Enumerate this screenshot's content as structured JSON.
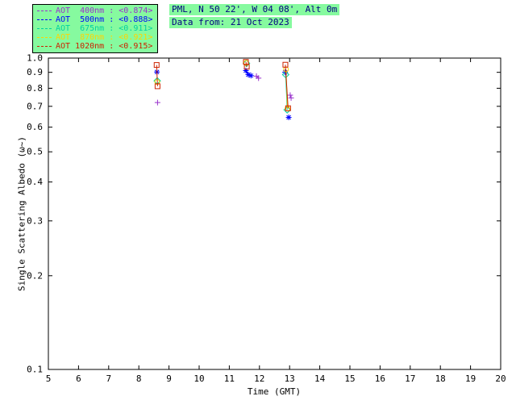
{
  "theme": {
    "legend_bg": "#86fa9f",
    "header_bg": "#86fa9f",
    "header_text_color": "#000080",
    "axis_color": "#000000"
  },
  "header": {
    "station_line": "PML, N 50 22', W 04 08', Alt 0m",
    "date_line": "Data from: 21 Oct 2023"
  },
  "chart_data": {
    "type": "scatter",
    "title": "",
    "xlabel": "Time (GMT)",
    "ylabel": "Single Scattering Albedo (ω~)",
    "xlim": [
      5,
      20
    ],
    "ylim": [
      0.1,
      1.0
    ],
    "yscale": "log",
    "grid": false,
    "legend_position": "top-left",
    "xticks": [
      5,
      6,
      7,
      8,
      9,
      10,
      11,
      12,
      13,
      14,
      15,
      16,
      17,
      18,
      19,
      20
    ],
    "yticks": [
      0.1,
      0.2,
      0.3,
      0.4,
      0.5,
      0.6,
      0.7,
      0.8,
      0.9,
      1.0
    ],
    "connect_gap_max": 0.1,
    "series": [
      {
        "name": "AOT 400nm",
        "legend_label": "AOT  400nm : <0.874>",
        "mean_label": "<0.874>",
        "color": "#9932cc",
        "marker": "plus",
        "points": [
          [
            8.62,
            0.72
          ],
          [
            11.9,
            0.875
          ],
          [
            11.97,
            0.862
          ],
          [
            13.02,
            0.76
          ],
          [
            13.05,
            0.745
          ]
        ]
      },
      {
        "name": "AOT 500nm",
        "legend_label": "AOT  500nm : <0.888>",
        "mean_label": "<0.888>",
        "color": "#0000ff",
        "marker": "asterisk",
        "points": [
          [
            8.6,
            0.902
          ],
          [
            11.55,
            0.912
          ],
          [
            11.63,
            0.885
          ],
          [
            11.72,
            0.878
          ],
          [
            12.85,
            0.9
          ],
          [
            12.97,
            0.645
          ]
        ]
      },
      {
        "name": "AOT 675nm",
        "legend_label": "AOT  675nm : <0.911>",
        "mean_label": "<0.911>",
        "color": "#00d2a0",
        "marker": "diamond",
        "points": [
          [
            8.61,
            0.845
          ],
          [
            11.57,
            0.962
          ],
          [
            12.87,
            0.885
          ],
          [
            12.92,
            0.682
          ]
        ]
      },
      {
        "name": "AOT 870nm",
        "legend_label": "AOT  870nm : <0.921>",
        "mean_label": "<0.921>",
        "color": "#ffd400",
        "marker": "circle",
        "points": [
          [
            8.61,
            0.838
          ],
          [
            11.56,
            0.965
          ],
          [
            12.88,
            0.92
          ],
          [
            12.93,
            0.688
          ]
        ]
      },
      {
        "name": "AOT 1020nm",
        "legend_label": "AOT 1020nm : <0.915>",
        "mean_label": "<0.915>",
        "color": "#cc2200",
        "marker": "square",
        "points": [
          [
            8.59,
            0.95
          ],
          [
            8.62,
            0.812
          ],
          [
            11.55,
            0.972
          ],
          [
            11.58,
            0.938
          ],
          [
            12.86,
            0.952
          ],
          [
            12.95,
            0.69
          ]
        ]
      }
    ]
  }
}
